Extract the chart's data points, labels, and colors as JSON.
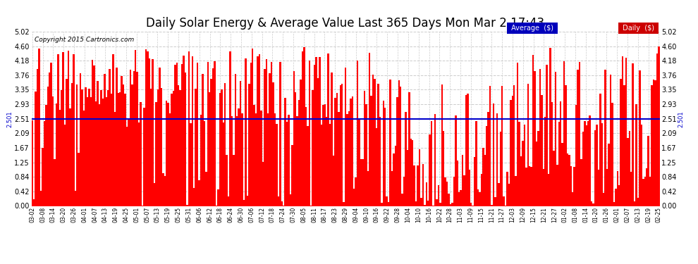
{
  "title": "Daily Solar Energy & Average Value Last 365 Days Mon Mar 2 17:43",
  "copyright": "Copyright 2015 Cartronics.com",
  "average_value": 2.501,
  "average_label": "2.501",
  "y_max": 5.02,
  "y_ticks": [
    0.0,
    0.42,
    0.84,
    1.25,
    1.67,
    2.09,
    2.51,
    2.93,
    3.35,
    3.76,
    4.18,
    4.6,
    5.02
  ],
  "bar_color": "#ff0000",
  "average_line_color": "#0000cc",
  "background_color": "#ffffff",
  "title_fontsize": 12,
  "legend_avg_bg": "#0000bb",
  "legend_daily_bg": "#cc0000",
  "legend_text_color": "#ffffff",
  "x_labels": [
    "03-02",
    "03-08",
    "03-14",
    "03-20",
    "03-26",
    "04-01",
    "04-07",
    "04-13",
    "04-19",
    "04-25",
    "05-01",
    "05-07",
    "05-13",
    "05-19",
    "05-25",
    "05-31",
    "06-06",
    "06-12",
    "06-18",
    "06-24",
    "06-30",
    "07-06",
    "07-12",
    "07-18",
    "07-24",
    "07-30",
    "08-05",
    "08-11",
    "08-17",
    "08-23",
    "08-29",
    "09-04",
    "09-10",
    "09-16",
    "09-22",
    "09-28",
    "10-04",
    "10-10",
    "10-16",
    "10-22",
    "10-28",
    "11-03",
    "11-09",
    "11-15",
    "11-21",
    "11-27",
    "12-03",
    "12-09",
    "12-15",
    "12-21",
    "12-27",
    "01-02",
    "01-08",
    "01-14",
    "01-20",
    "01-26",
    "02-01",
    "02-07",
    "02-13",
    "02-19",
    "02-25"
  ],
  "grid_color": "#cccccc",
  "n_days": 365
}
